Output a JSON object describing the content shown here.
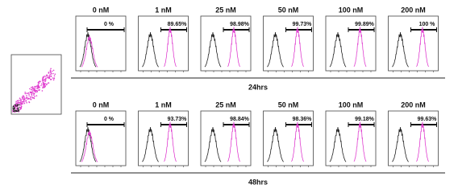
{
  "rows": [
    {
      "label": "24hrs",
      "panels": [
        {
          "concentration": "0 nM",
          "percent": "0 %"
        },
        {
          "concentration": "1 nM",
          "percent": "89.65%"
        },
        {
          "concentration": "25 nM",
          "percent": "98.98%"
        },
        {
          "concentration": "50 nM",
          "percent": "99.73%"
        },
        {
          "concentration": "100 nM",
          "percent": "99.89%"
        },
        {
          "concentration": "200 nM",
          "percent": "100 %"
        }
      ]
    },
    {
      "label": "48hrs",
      "panels": [
        {
          "concentration": "0 nM",
          "percent": "0 %"
        },
        {
          "concentration": "1 nM",
          "percent": "93.73%"
        },
        {
          "concentration": "25 nM",
          "percent": "98.84%"
        },
        {
          "concentration": "50 nM",
          "percent": "98.36%"
        },
        {
          "concentration": "100 nM",
          "percent": "99.18%"
        },
        {
          "concentration": "200 nM",
          "percent": "99.63%"
        }
      ]
    }
  ]
}
